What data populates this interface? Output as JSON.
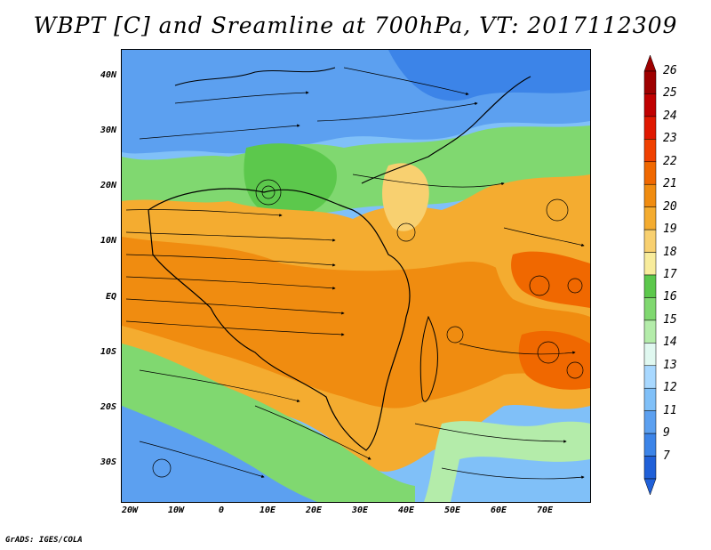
{
  "title": "WBPT [C] and Sreamline at 700hPa, VT: 2017112309",
  "credit": "GrADS: IGES/COLA",
  "lat_labels": [
    "40N",
    "30N",
    "20N",
    "10N",
    "EQ",
    "10S",
    "20S",
    "30S"
  ],
  "lon_labels": [
    "20W",
    "10W",
    "0",
    "10E",
    "20E",
    "30E",
    "40E",
    "50E",
    "60E",
    "70E"
  ],
  "colorbar": {
    "labels": [
      "26",
      "25",
      "24",
      "23",
      "22",
      "21",
      "20",
      "19",
      "18",
      "17",
      "16",
      "15",
      "14",
      "13",
      "12",
      "11",
      "9",
      "7"
    ],
    "colors": [
      "#9e0000",
      "#c00000",
      "#e01800",
      "#f04000",
      "#f06800",
      "#f08c10",
      "#f4ac30",
      "#f8d070",
      "#f8ec9c",
      "#5cc84c",
      "#80d870",
      "#b4ecaa",
      "#e0f8f0",
      "#a8d8ff",
      "#80c0f8",
      "#5ca0f0",
      "#3c84e8",
      "#2060d8"
    ]
  }
}
